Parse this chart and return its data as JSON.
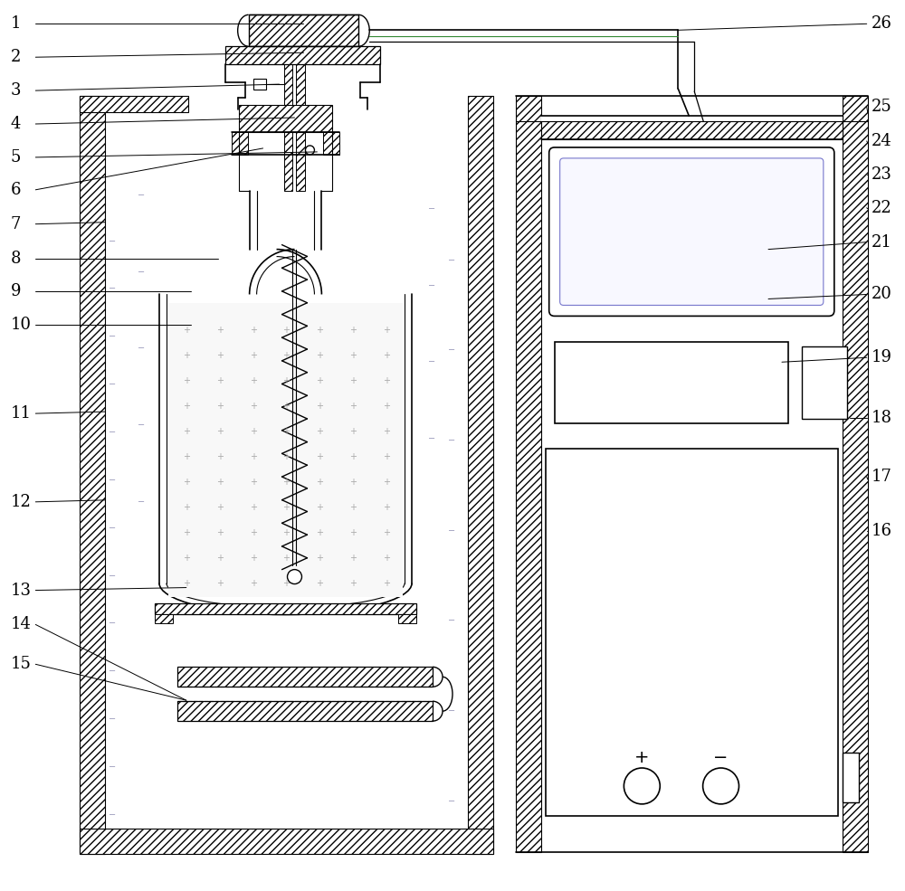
{
  "bg_color": "#ffffff",
  "line_color": "#000000",
  "labels_left": [
    "1",
    "2",
    "3",
    "4",
    "5",
    "6",
    "7",
    "8",
    "9",
    "10",
    "11",
    "12",
    "13",
    "14",
    "15"
  ],
  "labels_right": [
    "26",
    "25",
    "24",
    "23",
    "22",
    "21",
    "20",
    "19",
    "18",
    "17",
    "16"
  ],
  "lw_main": 1.2,
  "lw_thin": 0.8,
  "lw_hatch": 0.6,
  "hatch_pattern": "////",
  "label_fontsize": 13
}
